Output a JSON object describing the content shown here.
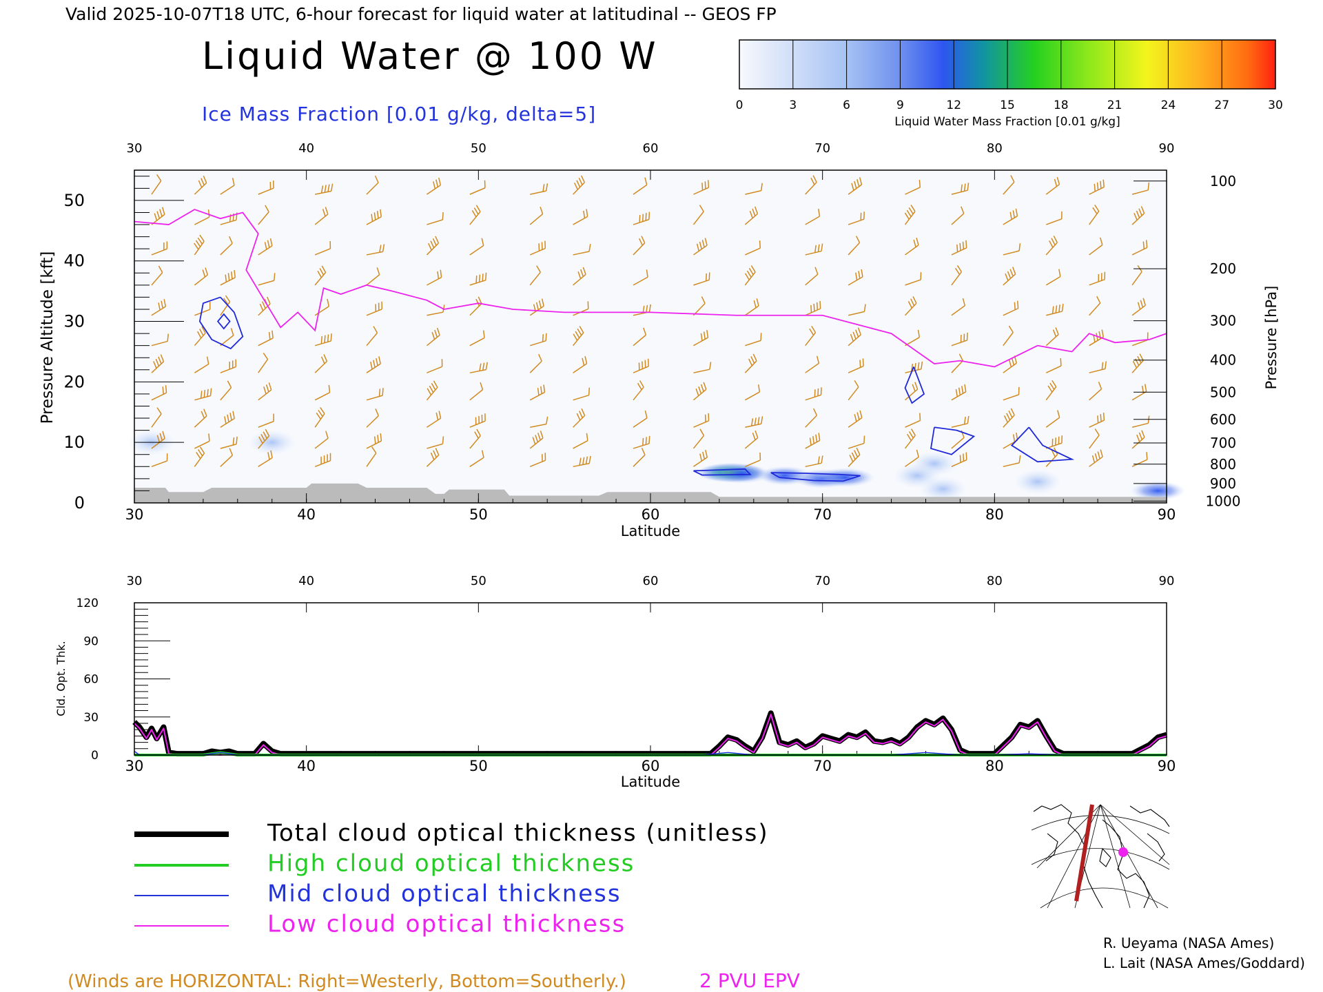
{
  "header": {
    "valid_line": "Valid 2025-10-07T18 UTC, 6-hour forecast for liquid water at latitudinal -- GEOS FP",
    "title": "Liquid Water @ 100 W",
    "subtitle": "Ice Mass Fraction [0.01 g/kg, delta=5]"
  },
  "colorbar": {
    "ticks": [
      "0",
      "3",
      "6",
      "9",
      "12",
      "15",
      "18",
      "21",
      "24",
      "27",
      "30"
    ],
    "label": "Liquid Water Mass Fraction [0.01 g/kg]",
    "colors": [
      "#f7f9fd",
      "#c7d8f7",
      "#9ebcf4",
      "#7d9cef",
      "#2f5bf0",
      "#1590a0",
      "#27d01c",
      "#8ce81b",
      "#f3f51c",
      "#ffb020",
      "#ff6a10",
      "#ff2010"
    ]
  },
  "credits": {
    "line1": "R. Ueyama (NASA Ames)",
    "line2": "L. Lait (NASA Ames/Goddard)"
  },
  "footer": {
    "winds_note": "(Winds are HORIZONTAL: Right=Westerly, Bottom=Southerly.)",
    "epv_label": "2 PVU EPV"
  },
  "legend": {
    "items": [
      {
        "label": "Total cloud optical thickness (unitless)",
        "color": "#000000"
      },
      {
        "label": "High cloud optical thickness",
        "color": "#22cc22"
      },
      {
        "label": "Mid cloud optical thickness",
        "color": "#2233dd"
      },
      {
        "label": "Low cloud optical thickness",
        "color": "#ee22ee"
      }
    ]
  },
  "colors": {
    "wind_barb": "#d18a1f",
    "ice_contour": "#1f28d8",
    "epv_line": "#ee22ee",
    "terrain": "#bbbbbb",
    "map_track": "#b02020",
    "map_marker": "#ee22ee"
  },
  "chart_data": [
    {
      "type": "heatmap",
      "xlabel": "Latitude",
      "ylabel": "Pressure Altitude [kft]",
      "y2label": "Pressure [hPa]",
      "xlim": [
        30,
        90
      ],
      "ylim": [
        0,
        55
      ],
      "xticks": [
        "30",
        "40",
        "50",
        "60",
        "70",
        "80",
        "90"
      ],
      "yticks": [
        "0",
        "10",
        "20",
        "30",
        "40",
        "50"
      ],
      "pressure_ticks": [
        {
          "label": "100",
          "alt": 53.2
        },
        {
          "label": "200",
          "alt": 38.7
        },
        {
          "label": "300",
          "alt": 30.1
        },
        {
          "label": "400",
          "alt": 23.6
        },
        {
          "label": "500",
          "alt": 18.3
        },
        {
          "label": "600",
          "alt": 13.8
        },
        {
          "label": "700",
          "alt": 9.9
        },
        {
          "label": "800",
          "alt": 6.4
        },
        {
          "label": "900",
          "alt": 3.2
        },
        {
          "label": "1000",
          "alt": 0.3
        }
      ],
      "epv_2pvu": {
        "lat": [
          30,
          32,
          33.5,
          35,
          36.3,
          37.2,
          36.5,
          38.5,
          39.5,
          40.5,
          41,
          42,
          43.5,
          45,
          47,
          48,
          50,
          52,
          55,
          60,
          65,
          70,
          74,
          76.5,
          78,
          80,
          82.5,
          84.5,
          85.5,
          87,
          89,
          90
        ],
        "alt": [
          46.5,
          46,
          48.5,
          47,
          48,
          44.5,
          38.5,
          29,
          31.5,
          28.5,
          35.5,
          34.5,
          36,
          35,
          33.5,
          32,
          33,
          32,
          31.5,
          31.5,
          31,
          31,
          28,
          23,
          23.5,
          22.5,
          26,
          25,
          28,
          26.5,
          27,
          28
        ]
      },
      "liquid_water_blobs": [
        {
          "lat": 64.7,
          "alt": 5.0,
          "value": 16
        },
        {
          "lat": 65.3,
          "alt": 4.8,
          "value": 10
        },
        {
          "lat": 67.8,
          "alt": 4.5,
          "value": 8
        },
        {
          "lat": 70.0,
          "alt": 4.0,
          "value": 10
        },
        {
          "lat": 71.3,
          "alt": 4.2,
          "value": 11
        },
        {
          "lat": 89.5,
          "alt": 2.0,
          "value": 8
        },
        {
          "lat": 77.0,
          "alt": 2.3,
          "value": 4
        },
        {
          "lat": 82.5,
          "alt": 3.5,
          "value": 3
        },
        {
          "lat": 38.0,
          "alt": 10.0,
          "value": 3
        },
        {
          "lat": 31.0,
          "alt": 10.0,
          "value": 2
        },
        {
          "lat": 76.5,
          "alt": 6.5,
          "value": 3
        },
        {
          "lat": 75.5,
          "alt": 4.5,
          "value": 2
        }
      ],
      "ice_contours": [
        [
          [
            35,
            34
          ],
          [
            34.0,
            33
          ],
          [
            33.8,
            30
          ],
          [
            34.5,
            27
          ],
          [
            35.6,
            25.5
          ],
          [
            36.3,
            27.5
          ],
          [
            35.8,
            31.5
          ],
          [
            35,
            34
          ]
        ],
        [
          [
            75.3,
            22.5
          ],
          [
            74.8,
            19
          ],
          [
            75.2,
            16.5
          ],
          [
            75.9,
            18
          ],
          [
            75.3,
            22.5
          ]
        ],
        [
          [
            76.5,
            12.5
          ],
          [
            76.3,
            9
          ],
          [
            77.5,
            8
          ],
          [
            78.8,
            11
          ],
          [
            77.8,
            12
          ],
          [
            76.5,
            12.5
          ]
        ],
        [
          [
            82.0,
            12.5
          ],
          [
            81.0,
            9.5
          ],
          [
            82.5,
            6.8
          ],
          [
            84.5,
            7.2
          ],
          [
            82.8,
            9.5
          ],
          [
            82.0,
            12.5
          ]
        ],
        [
          [
            62.5,
            5.3
          ],
          [
            65.5,
            5.6
          ],
          [
            65.8,
            4.7
          ],
          [
            63.0,
            4.6
          ],
          [
            62.5,
            5.3
          ]
        ],
        [
          [
            67.0,
            5.0
          ],
          [
            69.0,
            4.9
          ],
          [
            71.0,
            4.7
          ],
          [
            72.2,
            4.5
          ],
          [
            71.2,
            3.6
          ],
          [
            69.5,
            3.7
          ],
          [
            67.5,
            4.2
          ],
          [
            67.0,
            5.0
          ]
        ]
      ],
      "terrain": {
        "lat": [
          30,
          31.8,
          32,
          34,
          34.5,
          40,
          40.3,
          43,
          43.5,
          47,
          47.5,
          48,
          48.3,
          51.5,
          51.8,
          54,
          54.5,
          57,
          57.5,
          63.5,
          64,
          73,
          73.5,
          90
        ],
        "alt": [
          2.5,
          2.5,
          1.8,
          1.8,
          2.5,
          2.5,
          3.2,
          3.2,
          2.5,
          2.5,
          1.5,
          1.5,
          2.2,
          2.2,
          1.2,
          1.2,
          1.2,
          1.2,
          1.8,
          1.8,
          1.0,
          1.0,
          1.0,
          1.0
        ]
      }
    },
    {
      "type": "line",
      "xlabel": "Latitude",
      "ylabel": "Cld. Opt. Thk.",
      "xlim": [
        30,
        90
      ],
      "ylim": [
        0,
        120
      ],
      "xticks": [
        "30",
        "40",
        "50",
        "60",
        "70",
        "80",
        "90"
      ],
      "yticks": [
        "0",
        "30",
        "60",
        "90",
        "120"
      ],
      "series": [
        {
          "name": "Total cloud optical thickness (unitless)",
          "x": [
            30,
            30.3,
            30.7,
            31,
            31.3,
            31.7,
            32,
            32.5,
            34,
            34.5,
            35,
            35.5,
            36,
            37,
            37.5,
            38,
            38.5,
            40,
            60,
            62,
            63.5,
            64,
            64.5,
            65,
            65.5,
            66,
            66.5,
            67,
            67.5,
            68,
            68.5,
            69,
            69.5,
            70,
            70.5,
            71,
            71.5,
            72,
            72.5,
            73,
            73.5,
            74,
            74.5,
            75,
            75.5,
            76,
            76.5,
            77,
            77.5,
            78,
            78.5,
            80,
            81,
            81.5,
            82,
            82.5,
            83,
            83.5,
            84,
            88,
            89,
            89.5,
            90
          ],
          "values": [
            26,
            22,
            14,
            21,
            13,
            22,
            2,
            1,
            1,
            3,
            2,
            3,
            1,
            1,
            9,
            3,
            1,
            1,
            1,
            1,
            1,
            7,
            14,
            12,
            7,
            3,
            14,
            33,
            10,
            8,
            11,
            6,
            9,
            15,
            13,
            11,
            16,
            14,
            18,
            11,
            10,
            12,
            9,
            14,
            22,
            27,
            24,
            29,
            20,
            4,
            1,
            1,
            14,
            24,
            22,
            27,
            15,
            4,
            1,
            1,
            8,
            14,
            16
          ]
        },
        {
          "name": "High cloud optical thickness",
          "x": [
            30,
            34,
            35,
            36,
            90
          ],
          "values": [
            0,
            0,
            2,
            0,
            0
          ]
        },
        {
          "name": "Mid cloud optical thickness",
          "x": [
            30,
            30.3,
            31,
            34,
            35,
            36,
            63,
            64.5,
            66,
            74,
            76,
            78,
            80,
            82,
            84,
            90
          ],
          "values": [
            3,
            0,
            0,
            0,
            2,
            0,
            0,
            2,
            0,
            0,
            2,
            0,
            0,
            1,
            0,
            0
          ]
        },
        {
          "name": "Low cloud optical thickness",
          "x": [
            30,
            30.3,
            30.7,
            31,
            31.3,
            31.7,
            32,
            32.5,
            34,
            34.5,
            35,
            35.5,
            36,
            37,
            37.5,
            38,
            38.5,
            40,
            60,
            62,
            63.5,
            64,
            64.5,
            65,
            65.5,
            66,
            66.5,
            67,
            67.5,
            68,
            68.5,
            69,
            69.5,
            70,
            70.5,
            71,
            71.5,
            72,
            72.5,
            73,
            73.5,
            74,
            74.5,
            75,
            75.5,
            76,
            76.5,
            77,
            77.5,
            78,
            78.5,
            80,
            81,
            81.5,
            82,
            82.5,
            83,
            83.5,
            84,
            88,
            89,
            89.5,
            90
          ],
          "values": [
            25,
            21,
            13,
            20,
            12,
            21,
            1,
            0,
            0,
            1,
            0,
            1,
            0,
            0,
            8,
            2,
            0,
            0,
            0,
            0,
            0,
            6,
            13,
            11,
            6,
            2,
            13,
            32,
            9,
            7,
            10,
            5,
            8,
            14,
            12,
            10,
            15,
            13,
            17,
            10,
            9,
            11,
            8,
            13,
            21,
            26,
            23,
            28,
            19,
            3,
            0,
            0,
            13,
            23,
            21,
            26,
            14,
            3,
            0,
            0,
            7,
            13,
            15
          ]
        }
      ]
    }
  ]
}
